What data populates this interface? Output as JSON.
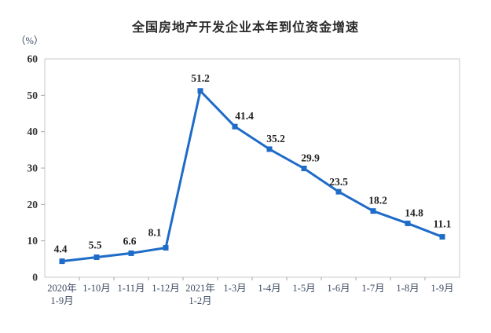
{
  "chart_data": {
    "type": "line",
    "title": "全国房地产开发企业本年到位资金增速",
    "unit_label": "（%）",
    "categories": [
      "2020年\n1-9月",
      "1-10月",
      "1-11月",
      "1-12月",
      "2021年\n1-2月",
      "1-3月",
      "1-4月",
      "1-5月",
      "1-6月",
      "1-7月",
      "1-8月",
      "1-9月"
    ],
    "values": [
      4.4,
      5.5,
      6.6,
      8.1,
      51.2,
      41.4,
      35.2,
      29.9,
      23.5,
      18.2,
      14.8,
      11.1
    ],
    "ylim": [
      0,
      60
    ],
    "ytick_step": 10,
    "grid": false,
    "legend": "none",
    "marker": "square",
    "colors": {
      "line": "#1E6BC8",
      "title": "#2B2B2B",
      "x_labels": "#3E4C63",
      "y_labels": "#333333",
      "data_labels": "#222222",
      "plot_border": "#C9C9C9",
      "tick": "#A6A6A6",
      "background": "#FFFFFF"
    }
  }
}
